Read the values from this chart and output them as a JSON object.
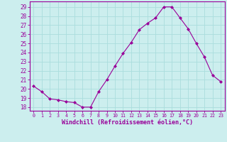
{
  "x": [
    0,
    1,
    2,
    3,
    4,
    5,
    6,
    7,
    8,
    9,
    10,
    11,
    12,
    13,
    14,
    15,
    16,
    17,
    18,
    19,
    20,
    21,
    22,
    23
  ],
  "y": [
    20.3,
    19.7,
    18.9,
    18.8,
    18.6,
    18.5,
    18.0,
    18.0,
    19.7,
    21.0,
    22.5,
    23.9,
    25.1,
    26.5,
    27.2,
    27.8,
    29.0,
    29.0,
    27.8,
    26.6,
    25.0,
    23.5,
    21.5,
    20.8
  ],
  "line_color": "#990099",
  "marker": "D",
  "marker_size": 2,
  "bg_color": "#cceeee",
  "grid_color": "#aadddd",
  "xlabel": "Windchill (Refroidissement éolien,°C)",
  "xlabel_color": "#990099",
  "ylabel_ticks": [
    18,
    19,
    20,
    21,
    22,
    23,
    24,
    25,
    26,
    27,
    28,
    29
  ],
  "ylim": [
    17.6,
    29.6
  ],
  "xlim": [
    -0.5,
    23.5
  ],
  "xtick_labels": [
    "0",
    "1",
    "2",
    "3",
    "4",
    "5",
    "6",
    "7",
    "8",
    "9",
    "10",
    "11",
    "12",
    "13",
    "14",
    "15",
    "16",
    "17",
    "18",
    "19",
    "20",
    "21",
    "22",
    "23"
  ],
  "spine_color": "#990099",
  "tick_color": "#990099",
  "font_size_y": 5.5,
  "font_size_x": 4.8,
  "font_size_xlabel": 6.0
}
